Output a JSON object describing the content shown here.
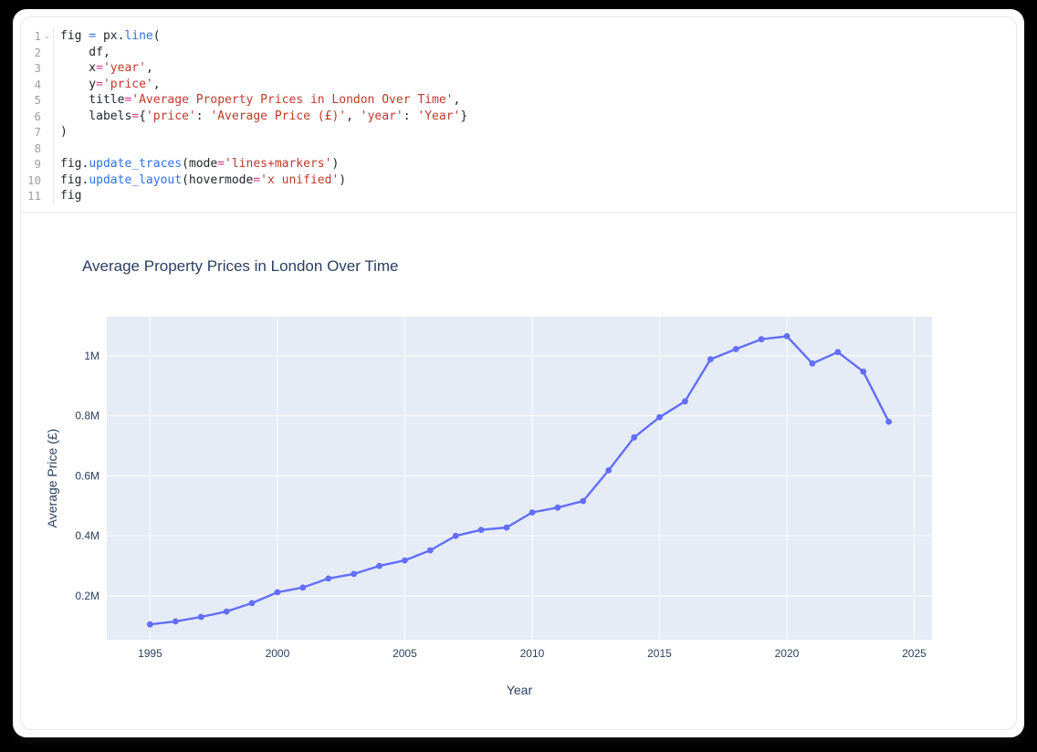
{
  "editor": {
    "fold_marker": "⌄",
    "token_classes": {
      "pl": "plain-text",
      "opb": "operator-blue",
      "fn": "function-name",
      "kw": "keyword-equals",
      "str": "string-literal"
    },
    "lines": [
      {
        "num": "1",
        "foldable": true,
        "tokens": [
          [
            "fig ",
            "pl"
          ],
          [
            "=",
            "opb"
          ],
          [
            " px",
            "pl"
          ],
          [
            ".",
            "pl"
          ],
          [
            "line",
            "fn"
          ],
          [
            "(",
            "pl"
          ]
        ]
      },
      {
        "num": "2",
        "foldable": false,
        "tokens": [
          [
            "    df,",
            "pl"
          ]
        ]
      },
      {
        "num": "3",
        "foldable": false,
        "tokens": [
          [
            "    x",
            "pl"
          ],
          [
            "=",
            "kw"
          ],
          [
            "'year'",
            "str"
          ],
          [
            ",",
            "pl"
          ]
        ]
      },
      {
        "num": "4",
        "foldable": false,
        "tokens": [
          [
            "    y",
            "pl"
          ],
          [
            "=",
            "kw"
          ],
          [
            "'price'",
            "str"
          ],
          [
            ",",
            "pl"
          ]
        ]
      },
      {
        "num": "5",
        "foldable": false,
        "tokens": [
          [
            "    title",
            "pl"
          ],
          [
            "=",
            "kw"
          ],
          [
            "'Average Property Prices in London Over Time'",
            "str"
          ],
          [
            ",",
            "pl"
          ]
        ]
      },
      {
        "num": "6",
        "foldable": false,
        "tokens": [
          [
            "    labels",
            "pl"
          ],
          [
            "=",
            "kw"
          ],
          [
            "{",
            "pl"
          ],
          [
            "'price'",
            "str"
          ],
          [
            ": ",
            "pl"
          ],
          [
            "'Average Price (£)'",
            "str"
          ],
          [
            ", ",
            "pl"
          ],
          [
            "'year'",
            "str"
          ],
          [
            ": ",
            "pl"
          ],
          [
            "'Year'",
            "str"
          ],
          [
            "}",
            "pl"
          ]
        ]
      },
      {
        "num": "7",
        "foldable": false,
        "tokens": [
          [
            ")",
            "pl"
          ]
        ]
      },
      {
        "num": "8",
        "foldable": false,
        "tokens": []
      },
      {
        "num": "9",
        "foldable": false,
        "tokens": [
          [
            "fig",
            "pl"
          ],
          [
            ".",
            "pl"
          ],
          [
            "update_traces",
            "fn"
          ],
          [
            "(",
            "pl"
          ],
          [
            "mode",
            "pl"
          ],
          [
            "=",
            "kw"
          ],
          [
            "'lines+markers'",
            "str"
          ],
          [
            ")",
            "pl"
          ]
        ]
      },
      {
        "num": "10",
        "foldable": false,
        "tokens": [
          [
            "fig",
            "pl"
          ],
          [
            ".",
            "pl"
          ],
          [
            "update_layout",
            "fn"
          ],
          [
            "(",
            "pl"
          ],
          [
            "hovermode",
            "pl"
          ],
          [
            "=",
            "kw"
          ],
          [
            "'x unified'",
            "str"
          ],
          [
            ")",
            "pl"
          ]
        ]
      },
      {
        "num": "11",
        "foldable": false,
        "tokens": [
          [
            "fig",
            "pl"
          ]
        ]
      }
    ]
  },
  "chart_data": {
    "type": "line",
    "title": "Average Property Prices in London Over Time",
    "xlabel": "Year",
    "ylabel": "Average Price (£)",
    "mode": "lines+markers",
    "legend": "none",
    "grid": true,
    "line_color": "#636efa",
    "marker_color": "#636efa",
    "plot_bg": "#e5ecf6",
    "grid_color": "#ffffff",
    "text_color": "#2a3f5f",
    "x_range": [
      1993.3,
      2025.7
    ],
    "y_range": [
      54000,
      1130000
    ],
    "x_ticks": [
      1995,
      2000,
      2005,
      2010,
      2015,
      2020,
      2025
    ],
    "y_ticks": [
      {
        "value": 200000,
        "label": "0.2M"
      },
      {
        "value": 400000,
        "label": "0.4M"
      },
      {
        "value": 600000,
        "label": "0.6M"
      },
      {
        "value": 800000,
        "label": "0.8M"
      },
      {
        "value": 1000000,
        "label": "1M"
      }
    ],
    "series": [
      {
        "name": "price",
        "x": [
          1995,
          1996,
          1997,
          1998,
          1999,
          2000,
          2001,
          2002,
          2003,
          2004,
          2005,
          2006,
          2007,
          2008,
          2009,
          2010,
          2011,
          2012,
          2013,
          2014,
          2015,
          2016,
          2017,
          2018,
          2019,
          2020,
          2021,
          2022,
          2023,
          2024
        ],
        "y": [
          105000,
          115000,
          130000,
          148000,
          176000,
          212000,
          228000,
          258000,
          273000,
          300000,
          318000,
          352000,
          400000,
          420000,
          428000,
          478000,
          494000,
          516000,
          618000,
          728000,
          795000,
          848000,
          988000,
          1022000,
          1055000,
          1065000,
          974000,
          1012000,
          947000,
          780000
        ]
      }
    ]
  }
}
